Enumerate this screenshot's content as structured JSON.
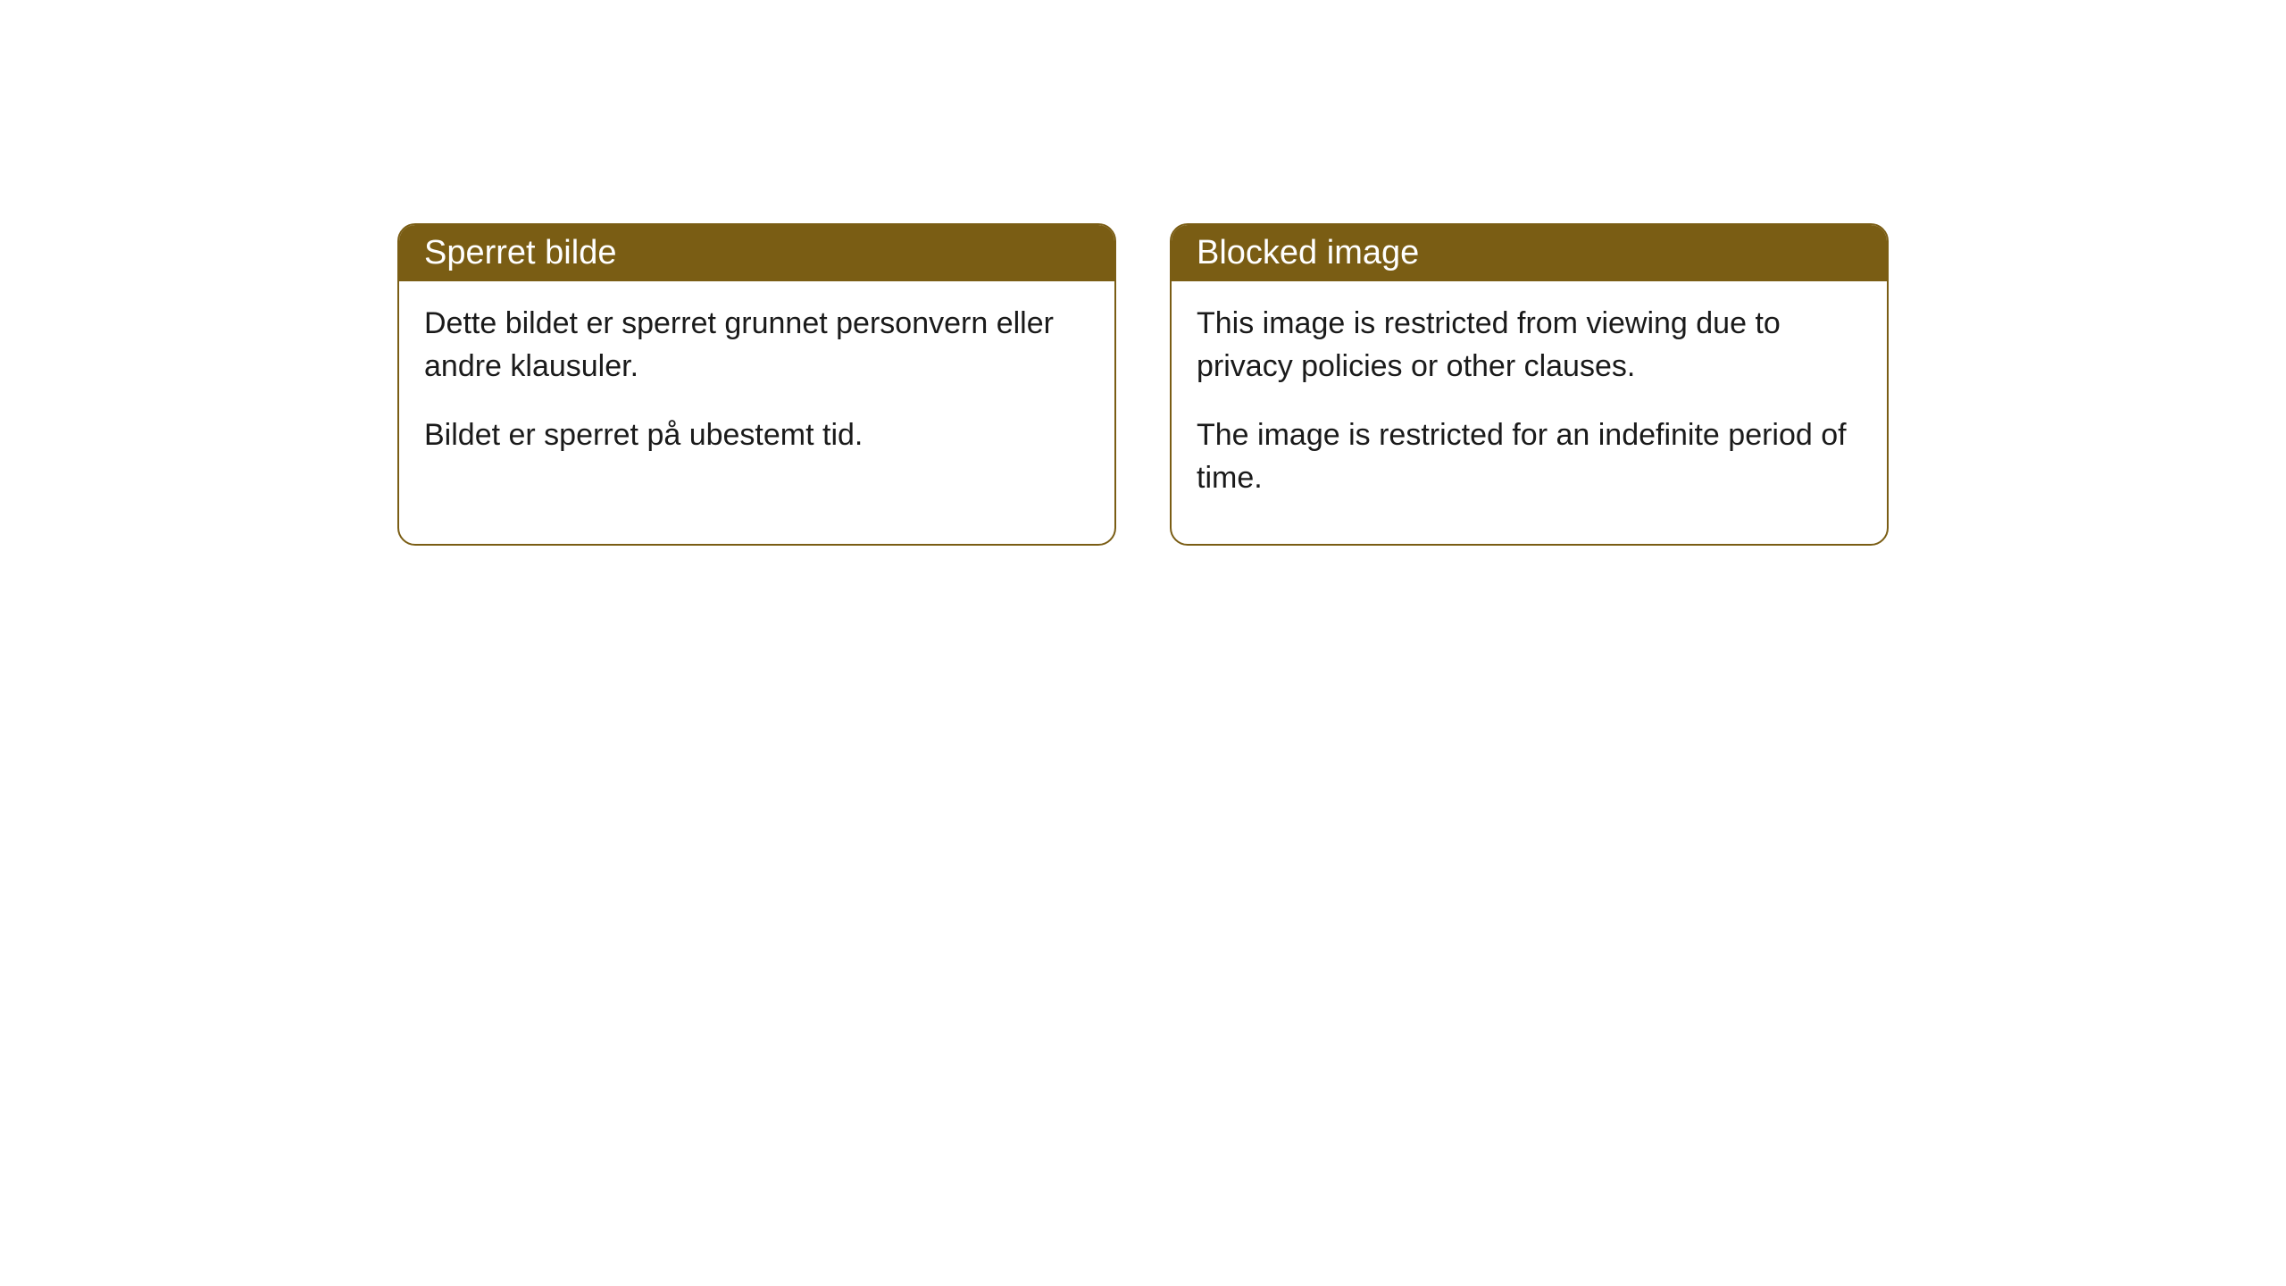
{
  "cards": [
    {
      "title": "Sperret bilde",
      "paragraph1": "Dette bildet er sperret grunnet personvern eller andre klausuler.",
      "paragraph2": "Bildet er sperret på ubestemt tid."
    },
    {
      "title": "Blocked image",
      "paragraph1": "This image is restricted from viewing due to privacy policies or other clauses.",
      "paragraph2": "The image is restricted for an indefinite period of time."
    }
  ],
  "styling": {
    "header_bg_color": "#7a5d14",
    "header_text_color": "#ffffff",
    "border_color": "#7a5d14",
    "body_bg_color": "#ffffff",
    "body_text_color": "#1a1a1a",
    "border_radius": 20,
    "title_fontsize": 38,
    "body_fontsize": 34
  }
}
